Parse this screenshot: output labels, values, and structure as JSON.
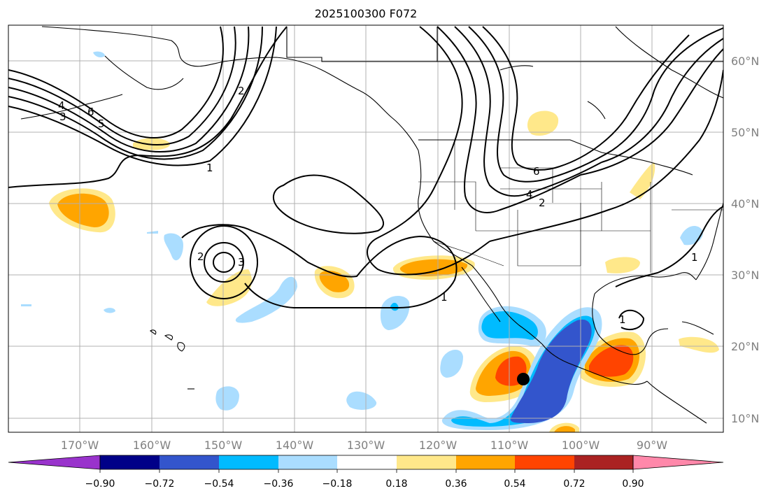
{
  "title": "2025100300 F072",
  "map": {
    "lon_range": [
      -180,
      -80
    ],
    "lat_range": [
      8,
      65
    ],
    "lon_ticks": [
      "170°W",
      "160°W",
      "150°W",
      "140°W",
      "130°W",
      "120°W",
      "110°W",
      "100°W",
      "90°W"
    ],
    "lat_ticks": [
      "60°N",
      "50°N",
      "40°N",
      "30°N",
      "20°N",
      "10°N"
    ],
    "contour_labels": [
      "4",
      "5",
      "3",
      "6",
      "2",
      "1",
      "2",
      "3",
      "1",
      "6",
      "4",
      "2",
      "1",
      "1"
    ],
    "marker": {
      "lon": -108,
      "lat": 15.5
    }
  },
  "colorbar": {
    "colors": [
      "#9933cc",
      "#000088",
      "#3355cc",
      "#00bbff",
      "#aaddff",
      "#ffffff",
      "#ffe88a",
      "#ffa500",
      "#ff4400",
      "#aa2222",
      "#ff88aa"
    ],
    "tick_labels": [
      "−0.90",
      "−0.72",
      "−0.54",
      "−0.36",
      "−0.18",
      "0.18",
      "0.36",
      "0.54",
      "0.72",
      "0.90"
    ]
  }
}
